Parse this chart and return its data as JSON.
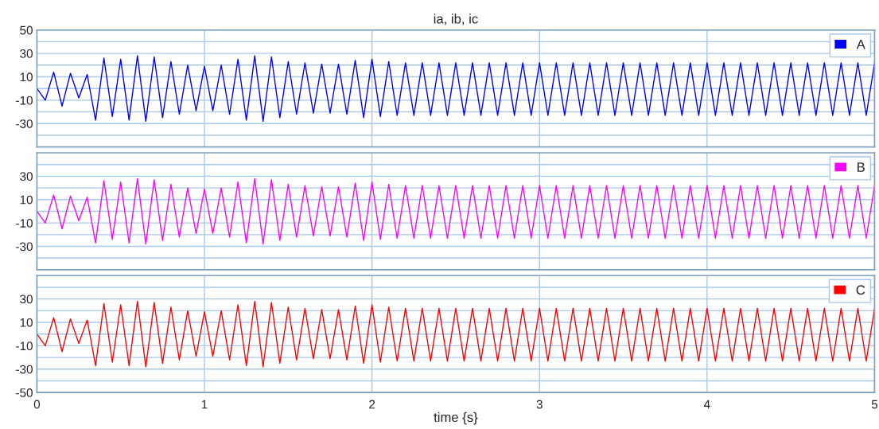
{
  "chart_data": [
    {
      "type": "line",
      "title": "ia, ib, ic",
      "xlim": [
        0,
        5
      ],
      "ylim": [
        -50,
        50
      ],
      "xticks": [
        0,
        1,
        2,
        3,
        4,
        5
      ],
      "yticks": [
        {
          "value": -40,
          "label": null
        },
        -30,
        {
          "value": -20,
          "label": null
        },
        -10,
        {
          "value": 0,
          "label": null
        },
        10,
        {
          "value": 20,
          "label": null
        },
        30,
        {
          "value": 40,
          "label": null
        },
        50
      ],
      "tick_labels": "y",
      "grid": true,
      "legend": "top right",
      "series": [
        {
          "name": "A",
          "color": "#0000ff",
          "x": [
            0,
            0.05,
            0.1,
            0.15,
            0.2,
            0.25,
            0.3,
            0.35,
            0.4,
            0.45,
            0.5,
            0.55,
            0.6,
            0.65,
            0.7,
            0.75,
            0.8,
            0.85,
            0.9,
            0.95,
            1,
            1.05,
            1.1,
            1.15,
            1.2,
            1.25,
            1.3,
            1.35,
            1.4,
            1.45,
            1.5,
            1.55,
            1.6,
            1.65,
            1.7,
            1.75,
            1.8,
            1.85,
            1.9,
            1.95,
            2,
            2.05,
            2.1,
            2.15,
            2.2,
            2.25,
            2.3,
            2.35,
            2.4,
            2.45,
            2.5,
            2.55,
            2.6,
            2.65,
            2.7,
            2.75,
            2.8,
            2.85,
            2.9,
            2.95,
            3,
            3.05,
            3.1,
            3.15,
            3.2,
            3.25,
            3.3,
            3.35,
            3.4,
            3.45,
            3.5,
            3.55,
            3.6,
            3.65,
            3.7,
            3.75,
            3.8,
            3.85,
            3.9,
            3.95,
            4,
            4.05,
            4.1,
            4.15,
            4.2,
            4.25,
            4.3,
            4.35,
            4.4,
            4.45,
            4.5,
            4.55,
            4.6,
            4.65,
            4.7,
            4.75,
            4.8,
            4.85,
            4.9,
            4.95,
            5
          ],
          "values": [
            0,
            -10,
            14,
            -15,
            13,
            -8,
            12,
            -27,
            26,
            -24,
            25,
            -27,
            28,
            -28,
            27,
            -25,
            23,
            -22,
            20,
            -19,
            19,
            -19,
            20,
            -22,
            25,
            -27,
            28,
            -28,
            27,
            -25,
            23,
            -22,
            22,
            -21,
            21,
            -21,
            21,
            -22,
            24,
            -25,
            25,
            -24,
            23,
            -23,
            22,
            -23,
            22,
            -23,
            22,
            -23,
            22,
            -23,
            22,
            -23,
            22,
            -23,
            22,
            -23,
            22,
            -23,
            22,
            -23,
            22,
            -23,
            22,
            -23,
            22,
            -23,
            22,
            -23,
            22,
            -23,
            22,
            -23,
            22,
            -23,
            22,
            -23,
            22,
            -23,
            22,
            -23,
            22,
            -23,
            22,
            -23,
            22,
            -23,
            22,
            -23,
            22,
            -23,
            22,
            -23,
            22,
            -23,
            22,
            -23,
            22,
            -23,
            22
          ]
        }
      ]
    },
    {
      "type": "line",
      "xlim": [
        0,
        5
      ],
      "ylim": [
        -50,
        50
      ],
      "xticks": [
        0,
        1,
        2,
        3,
        4,
        5
      ],
      "yticks": [
        {
          "value": -40,
          "label": null
        },
        -30,
        {
          "value": -20,
          "label": null
        },
        -10,
        {
          "value": 0,
          "label": null
        },
        10,
        {
          "value": 20,
          "label": null
        },
        30,
        {
          "value": 40,
          "label": null
        }
      ],
      "tick_labels": "y",
      "grid": true,
      "legend": "top right",
      "series": [
        {
          "name": "B",
          "color": "#ff00ff",
          "x": [
            0,
            0.05,
            0.1,
            0.15,
            0.2,
            0.25,
            0.3,
            0.35,
            0.4,
            0.45,
            0.5,
            0.55,
            0.6,
            0.65,
            0.7,
            0.75,
            0.8,
            0.85,
            0.9,
            0.95,
            1,
            1.05,
            1.1,
            1.15,
            1.2,
            1.25,
            1.3,
            1.35,
            1.4,
            1.45,
            1.5,
            1.55,
            1.6,
            1.65,
            1.7,
            1.75,
            1.8,
            1.85,
            1.9,
            1.95,
            2,
            2.05,
            2.1,
            2.15,
            2.2,
            2.25,
            2.3,
            2.35,
            2.4,
            2.45,
            2.5,
            2.55,
            2.6,
            2.65,
            2.7,
            2.75,
            2.8,
            2.85,
            2.9,
            2.95,
            3,
            3.05,
            3.1,
            3.15,
            3.2,
            3.25,
            3.3,
            3.35,
            3.4,
            3.45,
            3.5,
            3.55,
            3.6,
            3.65,
            3.7,
            3.75,
            3.8,
            3.85,
            3.9,
            3.95,
            4,
            4.05,
            4.1,
            4.15,
            4.2,
            4.25,
            4.3,
            4.35,
            4.4,
            4.45,
            4.5,
            4.55,
            4.6,
            4.65,
            4.7,
            4.75,
            4.8,
            4.85,
            4.9,
            4.95,
            5
          ],
          "values": [
            0,
            -10,
            14,
            -15,
            13,
            -8,
            12,
            -27,
            26,
            -24,
            25,
            -27,
            28,
            -28,
            27,
            -25,
            23,
            -22,
            20,
            -19,
            19,
            -19,
            20,
            -22,
            25,
            -27,
            28,
            -28,
            27,
            -25,
            23,
            -22,
            22,
            -21,
            21,
            -21,
            21,
            -22,
            24,
            -25,
            25,
            -24,
            23,
            -23,
            22,
            -23,
            22,
            -23,
            22,
            -23,
            22,
            -23,
            22,
            -23,
            22,
            -23,
            22,
            -23,
            22,
            -23,
            22,
            -23,
            22,
            -23,
            22,
            -23,
            22,
            -23,
            22,
            -23,
            22,
            -23,
            22,
            -23,
            22,
            -23,
            22,
            -23,
            22,
            -23,
            22,
            -23,
            22,
            -23,
            22,
            -23,
            22,
            -23,
            22,
            -23,
            22,
            -23,
            22,
            -23,
            22,
            -23,
            22,
            -23,
            22,
            -23,
            22
          ]
        }
      ]
    },
    {
      "type": "line",
      "xlabel": "time {s}",
      "xlim": [
        0,
        5
      ],
      "ylim": [
        -50,
        50
      ],
      "xticks": [
        0,
        1,
        2,
        3,
        4,
        5
      ],
      "yticks": [
        -50,
        {
          "value": -40,
          "label": null
        },
        -30,
        {
          "value": -20,
          "label": null
        },
        -10,
        {
          "value": 0,
          "label": null
        },
        10,
        {
          "value": 20,
          "label": null
        },
        30,
        {
          "value": 40,
          "label": null
        }
      ],
      "grid": true,
      "legend": "top right",
      "series": [
        {
          "name": "C",
          "color": "#ff0000",
          "x": [
            0,
            0.05,
            0.1,
            0.15,
            0.2,
            0.25,
            0.3,
            0.35,
            0.4,
            0.45,
            0.5,
            0.55,
            0.6,
            0.65,
            0.7,
            0.75,
            0.8,
            0.85,
            0.9,
            0.95,
            1,
            1.05,
            1.1,
            1.15,
            1.2,
            1.25,
            1.3,
            1.35,
            1.4,
            1.45,
            1.5,
            1.55,
            1.6,
            1.65,
            1.7,
            1.75,
            1.8,
            1.85,
            1.9,
            1.95,
            2,
            2.05,
            2.1,
            2.15,
            2.2,
            2.25,
            2.3,
            2.35,
            2.4,
            2.45,
            2.5,
            2.55,
            2.6,
            2.65,
            2.7,
            2.75,
            2.8,
            2.85,
            2.9,
            2.95,
            3,
            3.05,
            3.1,
            3.15,
            3.2,
            3.25,
            3.3,
            3.35,
            3.4,
            3.45,
            3.5,
            3.55,
            3.6,
            3.65,
            3.7,
            3.75,
            3.8,
            3.85,
            3.9,
            3.95,
            4,
            4.05,
            4.1,
            4.15,
            4.2,
            4.25,
            4.3,
            4.35,
            4.4,
            4.45,
            4.5,
            4.55,
            4.6,
            4.65,
            4.7,
            4.75,
            4.8,
            4.85,
            4.9,
            4.95,
            5
          ],
          "values": [
            0,
            -10,
            14,
            -15,
            13,
            -8,
            12,
            -27,
            26,
            -24,
            25,
            -27,
            28,
            -28,
            27,
            -25,
            23,
            -22,
            20,
            -19,
            19,
            -19,
            20,
            -22,
            25,
            -27,
            28,
            -28,
            27,
            -25,
            23,
            -22,
            22,
            -21,
            21,
            -21,
            21,
            -22,
            24,
            -25,
            25,
            -24,
            23,
            -23,
            22,
            -23,
            22,
            -23,
            22,
            -23,
            22,
            -23,
            22,
            -23,
            22,
            -23,
            22,
            -23,
            22,
            -23,
            22,
            -23,
            22,
            -23,
            22,
            -23,
            22,
            -23,
            22,
            -23,
            22,
            -23,
            22,
            -23,
            22,
            -23,
            22,
            -23,
            22,
            -23,
            22,
            -23,
            22,
            -23,
            22,
            -23,
            22,
            -23,
            22,
            -23,
            22,
            -23,
            22,
            -23,
            22,
            -23,
            22,
            -23,
            22,
            -23,
            22
          ]
        }
      ]
    }
  ]
}
